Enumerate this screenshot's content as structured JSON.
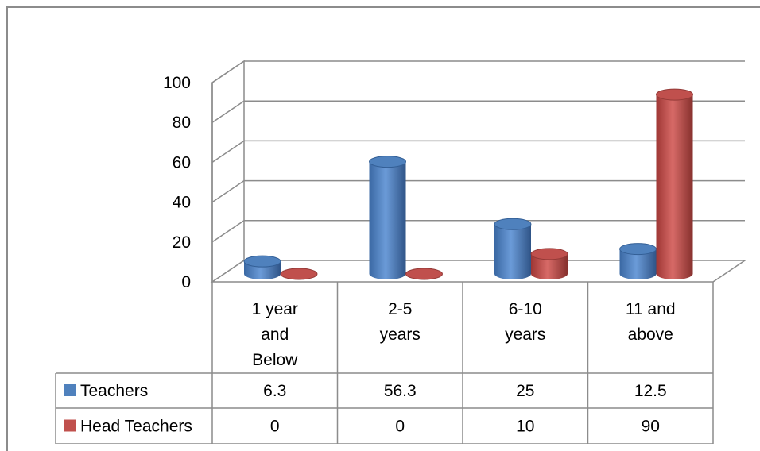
{
  "chart_data": {
    "type": "bar",
    "style": "3d-cylinder",
    "categories": [
      "1 year and Below",
      "2-5 years",
      "6-10 years",
      "11 and above"
    ],
    "category_lines": [
      [
        "1 year",
        "and",
        "Below"
      ],
      [
        "2-5",
        "years"
      ],
      [
        "6-10",
        "years"
      ],
      [
        "11 and",
        "above"
      ]
    ],
    "series": [
      {
        "name": "Teachers",
        "values": [
          6.3,
          56.3,
          25,
          12.5
        ],
        "color": "#4f81bd"
      },
      {
        "name": "Head Teachers",
        "values": [
          0,
          0,
          10,
          90
        ],
        "color": "#c0504d"
      }
    ],
    "value_labels": [
      [
        "6.3",
        "56.3",
        "25",
        "12.5"
      ],
      [
        "0",
        "0",
        "10",
        "90"
      ]
    ],
    "y_ticks": [
      "0",
      "20",
      "40",
      "60",
      "80",
      "100"
    ],
    "ylim": [
      0,
      100
    ],
    "grid": true,
    "legend": "data-table",
    "data_table": true
  }
}
